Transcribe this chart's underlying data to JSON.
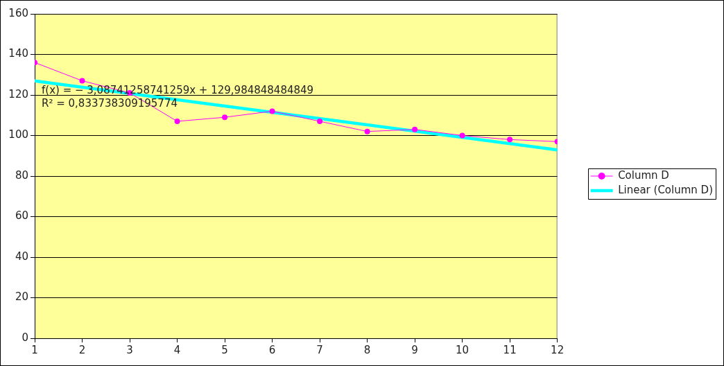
{
  "chart_data": {
    "type": "line",
    "x": [
      1,
      2,
      3,
      4,
      5,
      6,
      7,
      8,
      9,
      10,
      11,
      12
    ],
    "series": [
      {
        "name": "Column D",
        "color": "#ff00ff",
        "values": [
          136,
          127,
          121,
          107,
          109,
          112,
          107,
          102,
          103,
          100,
          98,
          97
        ]
      },
      {
        "name": "Linear (Column D)",
        "type": "line",
        "color": "#00ffff",
        "x": [
          1,
          12
        ],
        "values": [
          126.9,
          92.9
        ],
        "marker": "none"
      }
    ],
    "xlim": [
      1,
      12
    ],
    "xticks": [
      1,
      2,
      3,
      4,
      5,
      6,
      7,
      8,
      9,
      10,
      11,
      12
    ],
    "ylim": [
      0,
      160
    ],
    "yticks": [
      0,
      20,
      40,
      60,
      80,
      100,
      120,
      140,
      160
    ],
    "grid": "y",
    "legend": "right",
    "marker": "circle",
    "annotations": [
      "f(x) = − 3,08741258741259x + 129,984848484849",
      "R² = 0,833738309195774"
    ]
  }
}
